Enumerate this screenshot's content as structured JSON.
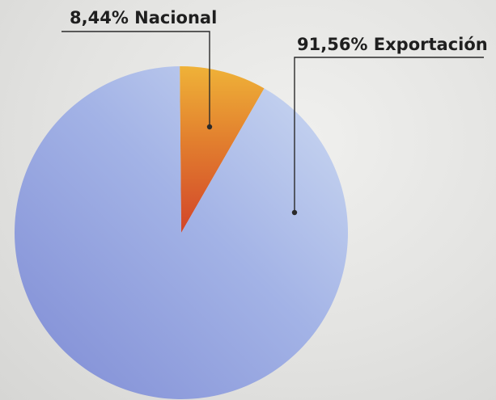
{
  "chart_data": {
    "type": "pie",
    "title": "",
    "slices": [
      {
        "label": "8,44% Nacional",
        "value": 8.44,
        "color": "#e09a2c"
      },
      {
        "label": "91,56% Exportación",
        "value": 91.56,
        "color": "#a6b6e6"
      }
    ],
    "legend": "none"
  }
}
